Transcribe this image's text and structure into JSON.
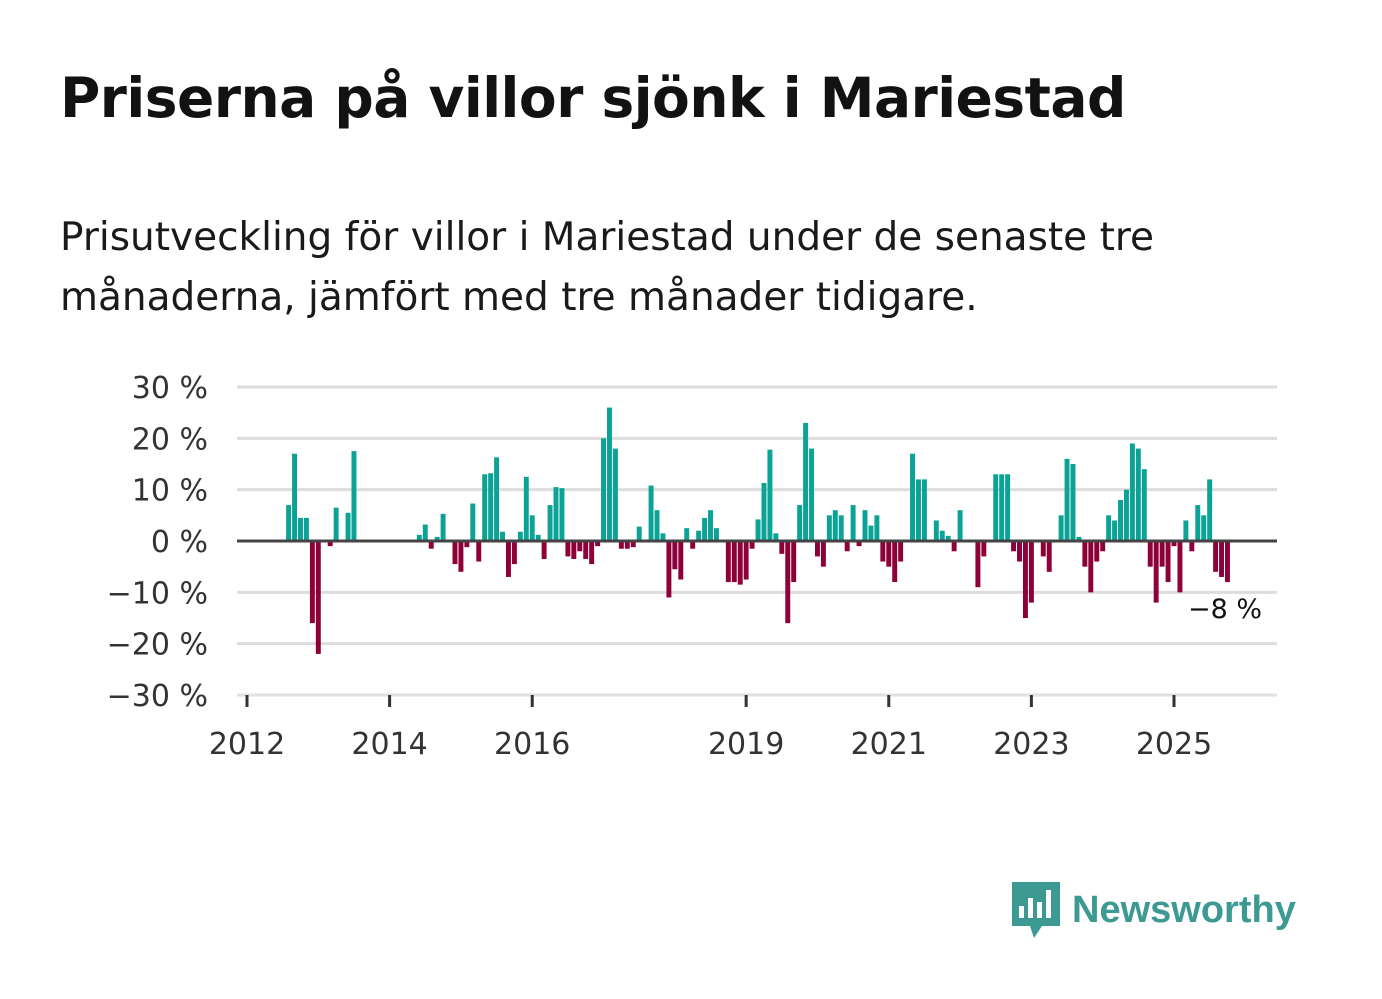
{
  "title": "Priserna på villor sjönk i Mariestad",
  "subtitle": "Prisutveckling för villor i Mariestad under de senaste tre månaderna, jämfört med tre månader tidigare.",
  "logo": {
    "text": "Newsworthy"
  },
  "colors": {
    "positive": "#0aa396",
    "negative": "#8d0038",
    "grid": "#dddddd",
    "zero": "#444444",
    "logo": "#3d9a93"
  },
  "chart_data": {
    "type": "bar",
    "title": "Priserna på villor sjönk i Mariestad",
    "xlabel": "",
    "ylabel": "",
    "ylim": [
      -30,
      30
    ],
    "yticks": [
      30,
      20,
      10,
      0,
      -10,
      -20,
      -30
    ],
    "ytick_labels": [
      "30 %",
      "20 %",
      "10 %",
      "0 %",
      "−10 %",
      "−20 %",
      "−30 %"
    ],
    "xticks": [
      "2012",
      "2014",
      "2016",
      "2019",
      "2021",
      "2023",
      "2025"
    ],
    "x_start": "2012-08",
    "frequency": "monthly",
    "unit": "%",
    "values": [
      7,
      17,
      4.5,
      4.5,
      -16,
      -22,
      0,
      -1,
      6.5,
      0,
      5.5,
      17.5,
      null,
      null,
      null,
      null,
      null,
      null,
      null,
      null,
      null,
      null,
      1.2,
      3.2,
      -1.5,
      0.8,
      5.3,
      0,
      -4.5,
      -6,
      -1.2,
      7.3,
      -4,
      13,
      13.2,
      16.3,
      1.8,
      -7,
      -4.5,
      1.8,
      12.5,
      5,
      1.2,
      -3.5,
      7,
      10.5,
      10.3,
      -3,
      -3.5,
      -2,
      -3.5,
      -4.5,
      -1,
      20,
      26,
      18,
      -1.5,
      -1.5,
      -1.2,
      2.8,
      0,
      10.8,
      6,
      1.5,
      -11,
      -5.5,
      -7.5,
      2.5,
      -1.5,
      2,
      4.5,
      6,
      2.5,
      0,
      -8,
      -8,
      -8.5,
      -7.5,
      -1.5,
      4.2,
      11.3,
      17.8,
      1.5,
      -2.5,
      -16,
      -8,
      7,
      23,
      18,
      -3,
      -5,
      5,
      6,
      5,
      -2,
      7,
      -1,
      6,
      3,
      5,
      -4,
      -5,
      -8,
      -4,
      0,
      17,
      12,
      12,
      0,
      4,
      2,
      1,
      -2,
      6,
      0,
      0,
      -9,
      -3,
      0,
      13,
      13,
      13,
      -2,
      -4,
      -15,
      -12,
      0,
      -3,
      -6,
      0,
      5,
      16,
      15,
      0.8,
      -5,
      -10,
      -4,
      -2,
      5,
      4,
      8,
      10,
      19,
      18,
      14,
      -5,
      -12,
      -5,
      -8,
      -1,
      -10,
      4,
      -2,
      7,
      5,
      12,
      -6,
      -7,
      -8
    ],
    "annotation": "−8 %",
    "grid": true
  }
}
